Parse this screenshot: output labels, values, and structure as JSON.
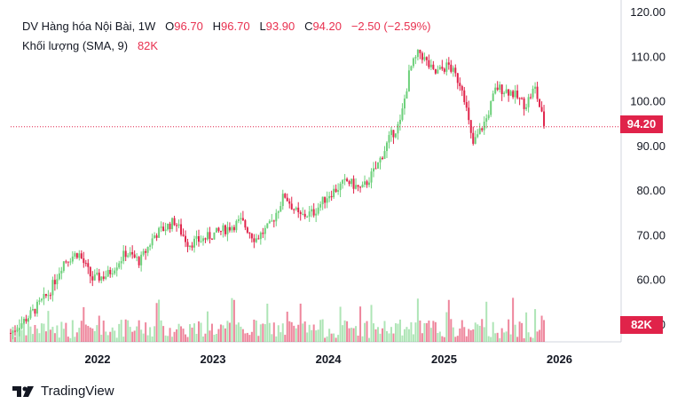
{
  "legend": {
    "symbol_title": "DV Hàng hóa Nội Bài, 1W",
    "open_label": "O",
    "open_value": "96.70",
    "high_label": "H",
    "high_value": "96.70",
    "low_label": "L",
    "low_value": "93.90",
    "close_label": "C",
    "close_value": "94.20",
    "change": "−2.50 (−2.59%)",
    "volume_title": "Khối lượng (SMA, 9)",
    "volume_value": "82K"
  },
  "price_tag": "94.20",
  "volume_tag": "82K",
  "brand": "TradingView",
  "colors": {
    "up": "#26a69a",
    "up_light": "#6cd07a",
    "down": "#e0234a",
    "tag": "#e0234a",
    "grid": "#ffffff"
  },
  "chart_data": {
    "type": "candlestick",
    "y_axis": {
      "ticks": [
        "120.00",
        "110.00",
        "100.00",
        "90.00",
        "80.00",
        "70.00",
        "60.00",
        "50.00"
      ],
      "range": [
        46,
        121
      ]
    },
    "x_axis": {
      "ticks": [
        "2022",
        "2023",
        "2024",
        "2025",
        "2026"
      ],
      "range": [
        "2021-04-01",
        "2026-07-01"
      ]
    },
    "last_price": 94.2,
    "weekly_close_samples": [
      {
        "date": "2021-04-01",
        "close": 48
      },
      {
        "date": "2021-06-01",
        "close": 52
      },
      {
        "date": "2021-08-01",
        "close": 57
      },
      {
        "date": "2021-09-15",
        "close": 64
      },
      {
        "date": "2021-11-01",
        "close": 66
      },
      {
        "date": "2021-12-15",
        "close": 60
      },
      {
        "date": "2022-02-01",
        "close": 61
      },
      {
        "date": "2022-04-01",
        "close": 66
      },
      {
        "date": "2022-05-15",
        "close": 64
      },
      {
        "date": "2022-07-01",
        "close": 70
      },
      {
        "date": "2022-09-01",
        "close": 73
      },
      {
        "date": "2022-10-15",
        "close": 68
      },
      {
        "date": "2022-12-01",
        "close": 69
      },
      {
        "date": "2023-02-01",
        "close": 71
      },
      {
        "date": "2023-04-01",
        "close": 73
      },
      {
        "date": "2023-05-15",
        "close": 69
      },
      {
        "date": "2023-07-01",
        "close": 72
      },
      {
        "date": "2023-08-15",
        "close": 79
      },
      {
        "date": "2023-10-01",
        "close": 74
      },
      {
        "date": "2023-11-15",
        "close": 75
      },
      {
        "date": "2024-01-01",
        "close": 79
      },
      {
        "date": "2024-03-01",
        "close": 82
      },
      {
        "date": "2024-04-15",
        "close": 80
      },
      {
        "date": "2024-06-01",
        "close": 85
      },
      {
        "date": "2024-07-15",
        "close": 92
      },
      {
        "date": "2024-08-15",
        "close": 95
      },
      {
        "date": "2024-09-15",
        "close": 107
      },
      {
        "date": "2024-10-15",
        "close": 111
      },
      {
        "date": "2024-12-01",
        "close": 106
      },
      {
        "date": "2025-01-15",
        "close": 108
      },
      {
        "date": "2025-03-01",
        "close": 103
      },
      {
        "date": "2025-04-01",
        "close": 90
      },
      {
        "date": "2025-05-15",
        "close": 96
      },
      {
        "date": "2025-06-15",
        "close": 103
      },
      {
        "date": "2025-08-01",
        "close": 102
      },
      {
        "date": "2025-09-15",
        "close": 99
      },
      {
        "date": "2025-10-15",
        "close": 103
      },
      {
        "date": "2025-11-15",
        "close": 94.2
      }
    ]
  }
}
